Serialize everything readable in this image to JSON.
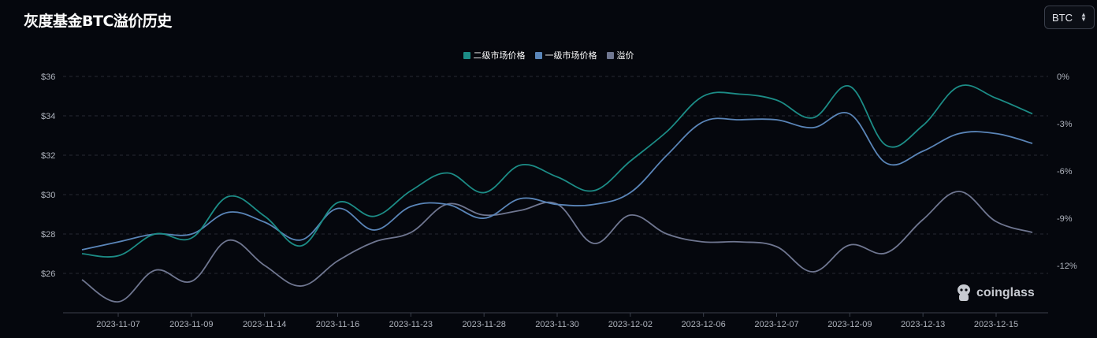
{
  "header": {
    "title": "灰度基金BTC溢价历史",
    "asset_select": "BTC"
  },
  "watermark": {
    "text": "coinglass",
    "icon": "coinglass-logo-icon"
  },
  "colors": {
    "background": "#05070d",
    "grid": "#262a33",
    "secondary": "#1c8c86",
    "primary": "#5a85b8",
    "premium": "#6f7690"
  },
  "chart_data": {
    "type": "line",
    "title": "灰度基金BTC溢价历史",
    "legend_position": "top-center",
    "grid": true,
    "x_tick_labels": [
      "2023-11-07",
      "2023-11-09",
      "2023-11-14",
      "2023-11-16",
      "2023-11-23",
      "2023-11-28",
      "2023-11-30",
      "2023-12-02",
      "2023-12-06",
      "2023-12-07",
      "2023-12-09",
      "2023-12-13",
      "2023-12-15"
    ],
    "y_left": {
      "ticks": [
        "$36",
        "$34",
        "$32",
        "$30",
        "$28",
        "$26"
      ],
      "range": [
        24,
        36
      ]
    },
    "y_right": {
      "ticks": [
        "0%",
        "-3%",
        "-6%",
        "-9%",
        "-12%"
      ],
      "range": [
        -15,
        0
      ]
    },
    "series": [
      {
        "name": "二级市场价格",
        "axis": "left",
        "color": "#1c8c86",
        "values": [
          27.0,
          26.9,
          28.0,
          27.8,
          29.9,
          28.9,
          27.4,
          29.6,
          28.9,
          30.2,
          31.1,
          30.1,
          31.5,
          30.9,
          30.2,
          31.7,
          33.2,
          35.0,
          35.1,
          34.8,
          33.9,
          35.5,
          32.5,
          33.5,
          35.5,
          34.9,
          34.1
        ]
      },
      {
        "name": "一级市场价格",
        "axis": "left",
        "color": "#5a85b8",
        "values": [
          27.2,
          27.6,
          28.0,
          28.0,
          29.1,
          28.6,
          27.7,
          29.3,
          28.2,
          29.4,
          29.5,
          28.8,
          29.8,
          29.5,
          29.5,
          30.1,
          32.0,
          33.7,
          33.8,
          33.8,
          33.4,
          34.1,
          31.6,
          32.2,
          33.1,
          33.1,
          32.6
        ]
      },
      {
        "name": "溢价",
        "axis": "right",
        "color": "#6f7690",
        "values": [
          -12.9,
          -14.3,
          -12.3,
          -13.0,
          -10.4,
          -12.0,
          -13.3,
          -11.7,
          -10.5,
          -9.9,
          -8.1,
          -8.8,
          -8.5,
          -8.1,
          -10.6,
          -8.8,
          -10.0,
          -10.5,
          -10.5,
          -10.8,
          -12.4,
          -10.7,
          -11.2,
          -9.1,
          -7.3,
          -9.2,
          -9.9
        ]
      }
    ]
  }
}
